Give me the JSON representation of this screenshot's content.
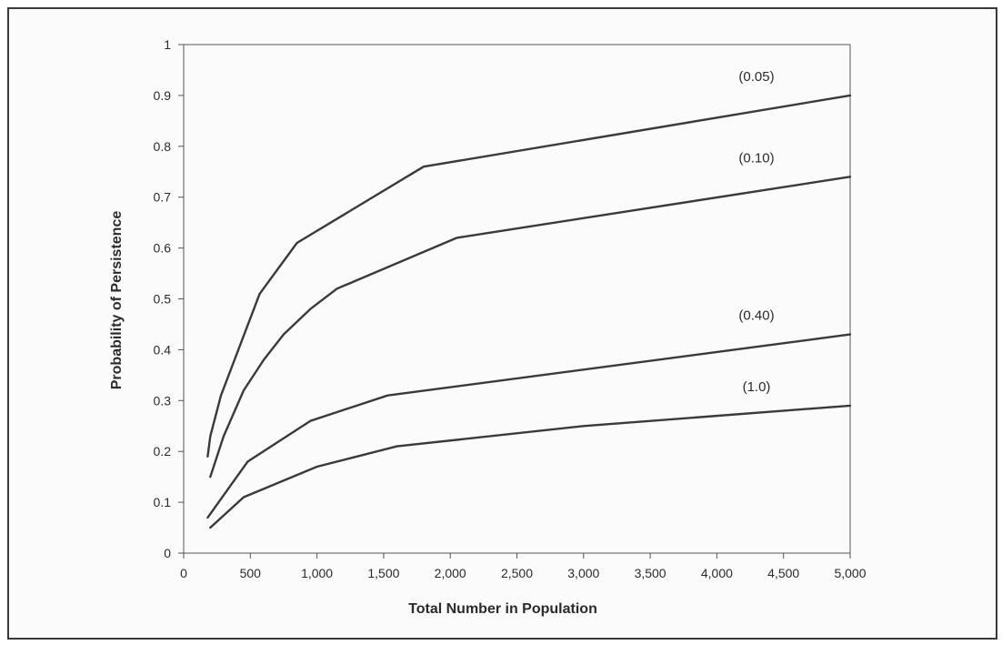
{
  "chart_data": {
    "type": "line",
    "title": "",
    "xlabel": "Total Number in Population",
    "ylabel": "Probability of Persistence",
    "xlim": [
      0,
      5000
    ],
    "ylim": [
      0,
      1
    ],
    "x_ticks": [
      0,
      500,
      1000,
      1500,
      2000,
      2500,
      3000,
      3500,
      4000,
      4500,
      5000
    ],
    "x_tick_labels": [
      "0",
      "500",
      "1,000",
      "1,500",
      "2,000",
      "2,500",
      "3,000",
      "3,500",
      "4,000",
      "4,500",
      "5,000"
    ],
    "y_ticks": [
      0,
      0.1,
      0.2,
      0.3,
      0.4,
      0.5,
      0.6,
      0.7,
      0.8,
      0.9,
      1
    ],
    "y_tick_labels": [
      "0",
      "0.1",
      "0.2",
      "0.3",
      "0.4",
      "0.5",
      "0.6",
      "0.7",
      "0.8",
      "0.9",
      "1"
    ],
    "grid": false,
    "line_color": "#3a3a3a",
    "series": [
      {
        "name": "(0.05)",
        "points": [
          [
            180,
            0.19
          ],
          [
            200,
            0.23
          ],
          [
            280,
            0.31
          ],
          [
            570,
            0.51
          ],
          [
            850,
            0.61
          ],
          [
            1800,
            0.76
          ],
          [
            5000,
            0.9
          ]
        ]
      },
      {
        "name": "(0.10)",
        "points": [
          [
            200,
            0.15
          ],
          [
            300,
            0.23
          ],
          [
            450,
            0.32
          ],
          [
            600,
            0.38
          ],
          [
            750,
            0.43
          ],
          [
            950,
            0.48
          ],
          [
            1150,
            0.52
          ],
          [
            2050,
            0.62
          ],
          [
            5000,
            0.74
          ]
        ]
      },
      {
        "name": "(0.40)",
        "points": [
          [
            180,
            0.07
          ],
          [
            480,
            0.18
          ],
          [
            950,
            0.26
          ],
          [
            1530,
            0.31
          ],
          [
            5000,
            0.43
          ]
        ]
      },
      {
        "name": "(1.0)",
        "points": [
          [
            200,
            0.05
          ],
          [
            450,
            0.11
          ],
          [
            1000,
            0.17
          ],
          [
            1600,
            0.21
          ],
          [
            3000,
            0.25
          ],
          [
            5000,
            0.29
          ]
        ]
      }
    ]
  }
}
